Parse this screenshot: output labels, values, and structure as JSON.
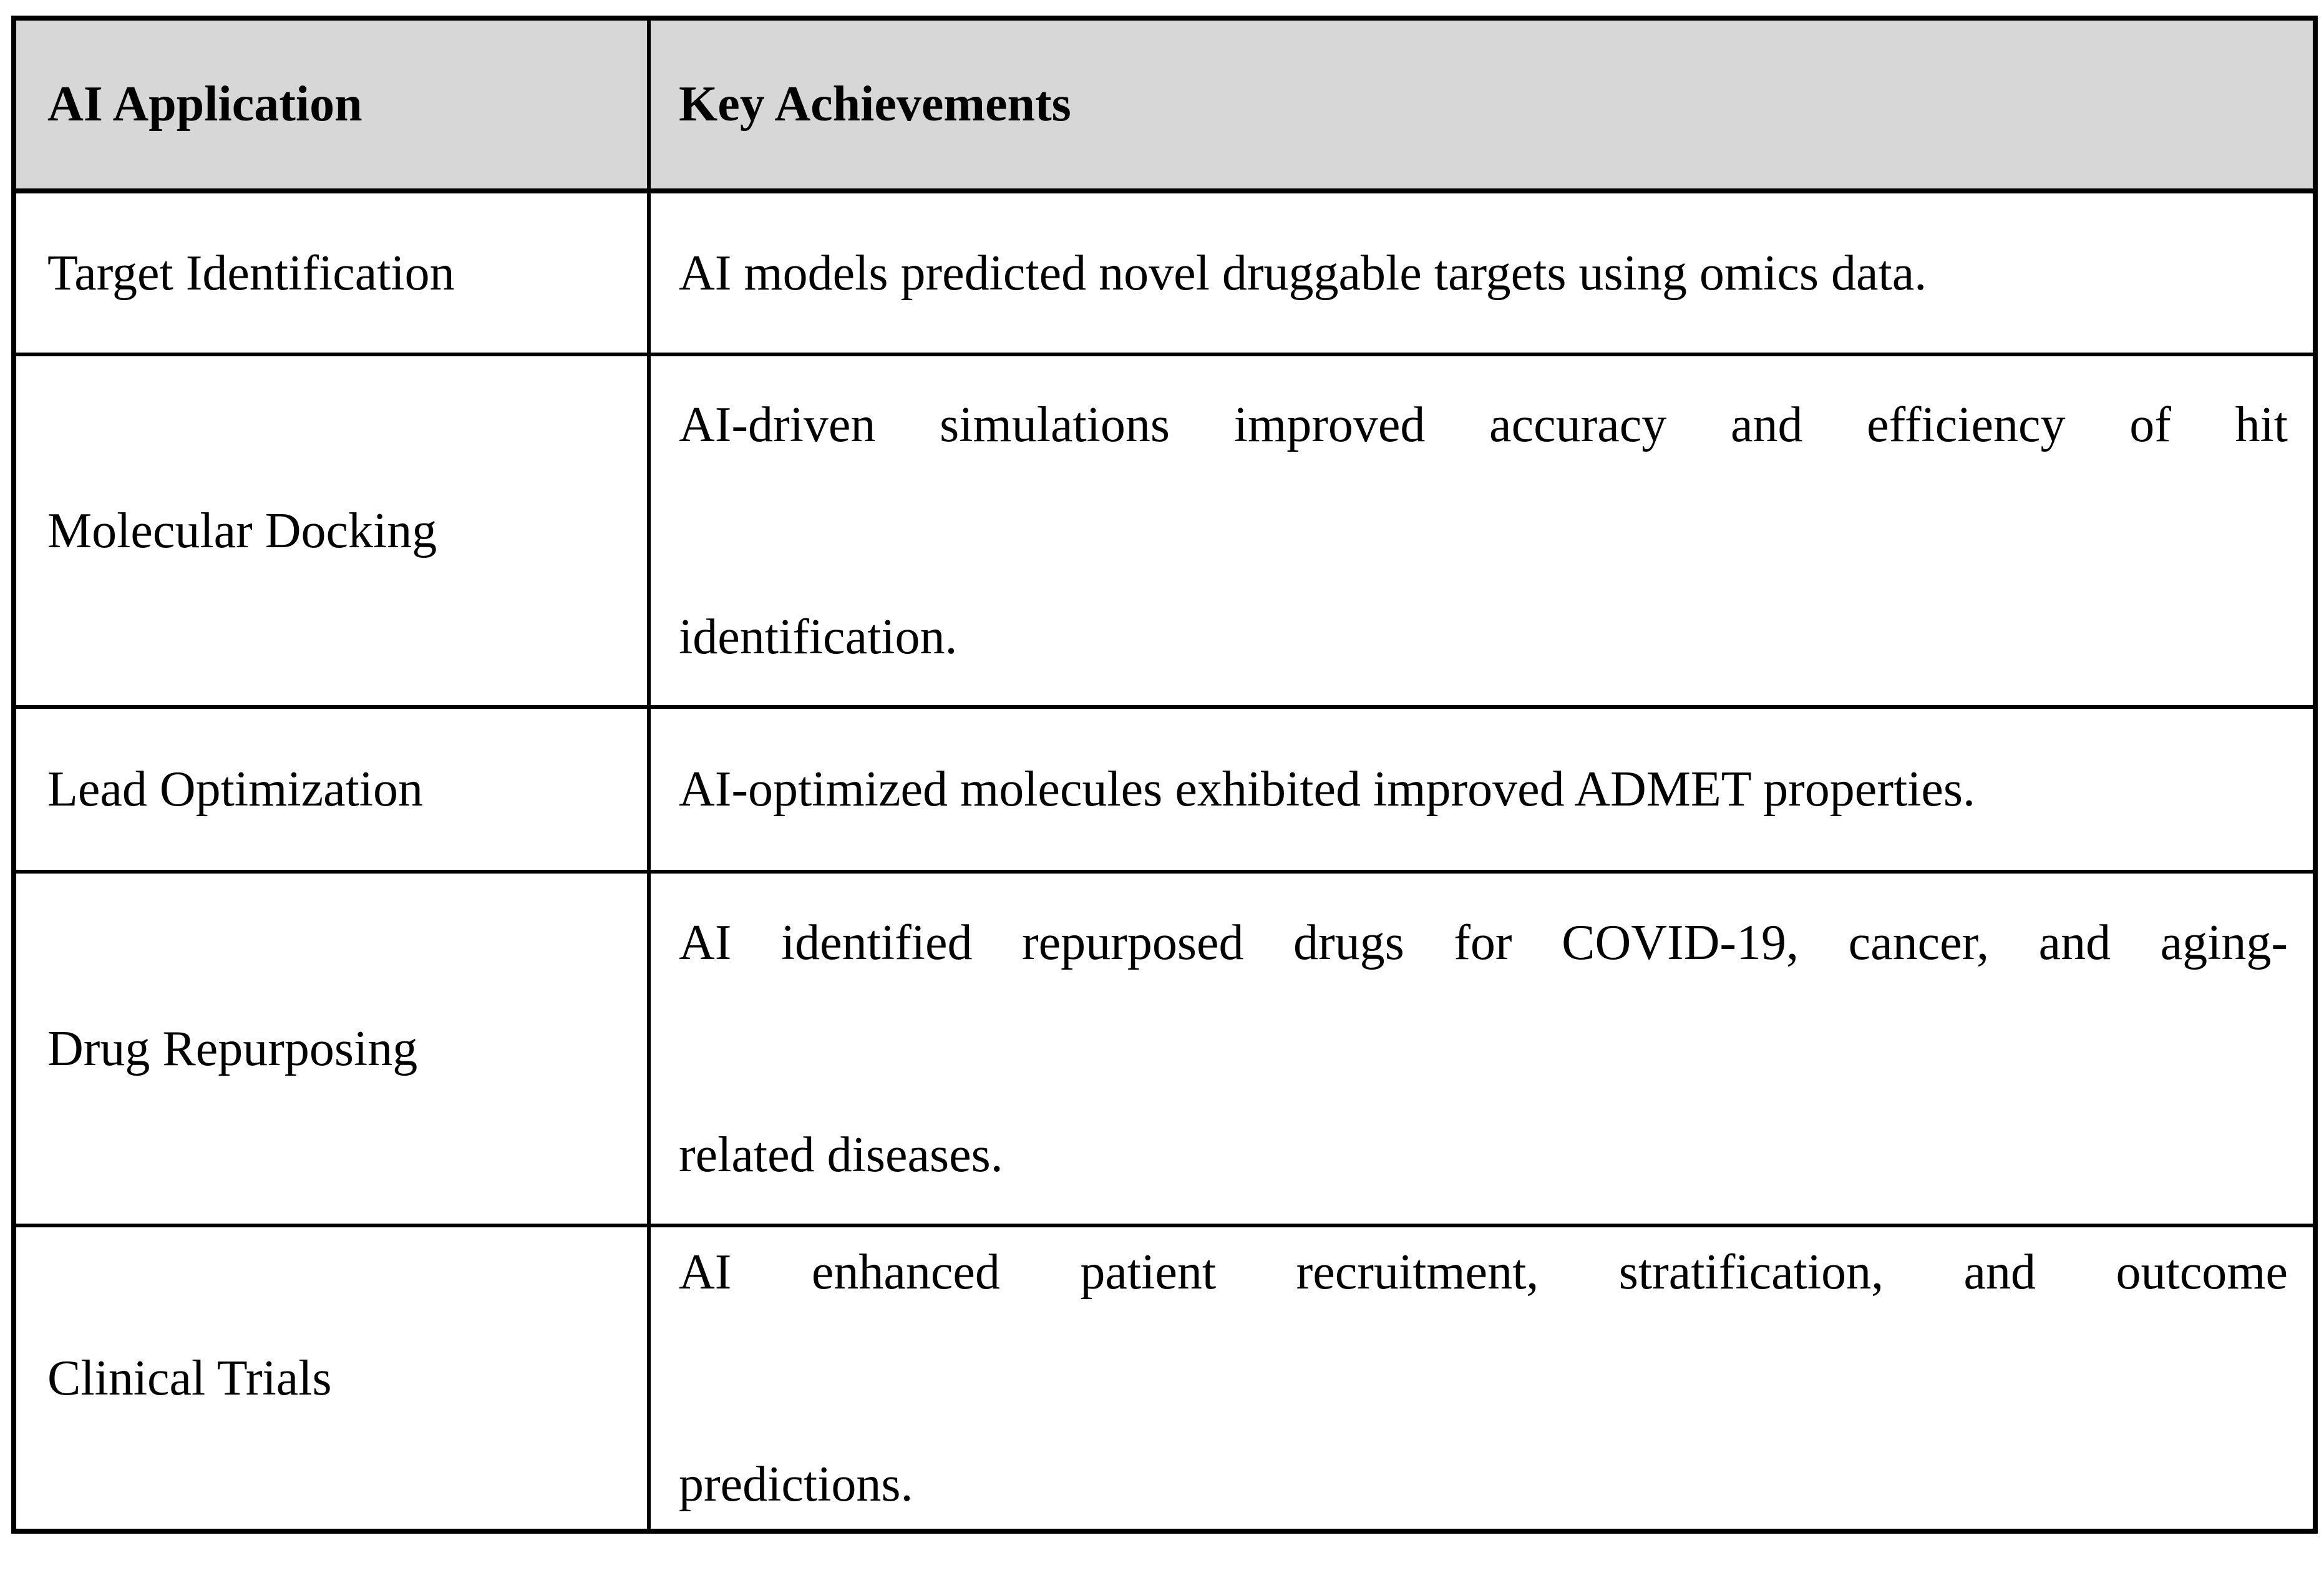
{
  "table": {
    "headers": [
      "AI Application",
      "Key Achievements"
    ],
    "rows": [
      {
        "application": "Target Identification",
        "achievement_lines": [
          "AI models predicted novel druggable targets using omics data."
        ]
      },
      {
        "application": "Molecular Docking",
        "achievement_lines": [
          "AI-driven simulations improved accuracy and efficiency of hit",
          "identification."
        ]
      },
      {
        "application": "Lead Optimization",
        "achievement_lines": [
          "AI-optimized molecules exhibited improved ADMET properties."
        ]
      },
      {
        "application": "Drug Repurposing",
        "achievement_lines": [
          "AI identified repurposed drugs for COVID-19, cancer, and aging-",
          "related diseases."
        ]
      },
      {
        "application": "Clinical Trials",
        "achievement_lines": [
          "AI enhanced patient recruitment, stratification, and outcome",
          "predictions."
        ]
      }
    ],
    "colors": {
      "header_bg": "#d7d7d7",
      "border": "#000000",
      "text": "#000000",
      "row_bg": "#ffffff"
    }
  }
}
